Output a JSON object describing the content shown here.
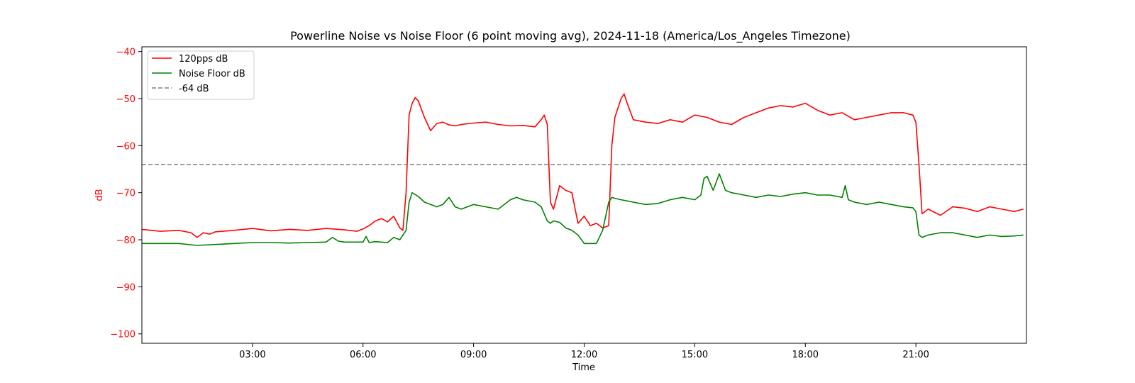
{
  "chart_data": {
    "type": "line",
    "title": "Powerline Noise vs Noise Floor (6 point moving avg), 2024-11-18 (America/Los_Angeles Timezone)",
    "xlabel": "Time",
    "ylabel": "dB",
    "xlim": [
      "00:00",
      "24:00"
    ],
    "ylim": [
      -102,
      -39
    ],
    "x_ticks": [
      "03:00",
      "06:00",
      "09:00",
      "12:00",
      "15:00",
      "18:00",
      "21:00"
    ],
    "y_ticks": [
      -40,
      -50,
      -60,
      -70,
      -80,
      -90,
      -100
    ],
    "legend_position": "top-left",
    "grid": false,
    "colors": {
      "axis_label": "#ff0000",
      "frame": "#000000"
    },
    "series": [
      {
        "name": "120pps dB",
        "color": "#ff0000",
        "style": "solid",
        "x": [
          "00:00",
          "00:30",
          "01:00",
          "01:20",
          "01:30",
          "01:40",
          "01:50",
          "02:00",
          "02:30",
          "03:00",
          "03:30",
          "04:00",
          "04:30",
          "05:00",
          "05:30",
          "05:50",
          "06:00",
          "06:10",
          "06:20",
          "06:30",
          "06:40",
          "06:50",
          "07:00",
          "07:05",
          "07:10",
          "07:15",
          "07:20",
          "07:25",
          "07:30",
          "07:40",
          "07:50",
          "08:00",
          "08:10",
          "08:20",
          "08:30",
          "08:40",
          "09:00",
          "09:20",
          "09:40",
          "10:00",
          "10:20",
          "10:40",
          "10:50",
          "10:55",
          "11:00",
          "11:05",
          "11:10",
          "11:20",
          "11:30",
          "11:40",
          "11:50",
          "12:00",
          "12:10",
          "12:20",
          "12:30",
          "12:40",
          "12:45",
          "12:50",
          "13:00",
          "13:05",
          "13:10",
          "13:20",
          "13:40",
          "14:00",
          "14:20",
          "14:40",
          "15:00",
          "15:20",
          "15:40",
          "16:00",
          "16:20",
          "16:40",
          "17:00",
          "17:20",
          "17:40",
          "18:00",
          "18:20",
          "18:40",
          "19:00",
          "19:20",
          "19:40",
          "20:00",
          "20:20",
          "20:40",
          "20:55",
          "21:00",
          "21:05",
          "21:10",
          "21:20",
          "21:40",
          "22:00",
          "22:20",
          "22:40",
          "23:00",
          "23:20",
          "23:40",
          "23:55"
        ],
        "y": [
          -77.8,
          -78.2,
          -78.0,
          -78.5,
          -79.5,
          -78.5,
          -78.8,
          -78.3,
          -78.0,
          -77.6,
          -78.1,
          -77.8,
          -78.0,
          -77.6,
          -77.9,
          -78.2,
          -77.7,
          -77.0,
          -76.0,
          -75.5,
          -76.2,
          -75.0,
          -77.5,
          -78.0,
          -70.0,
          -53.5,
          -51.0,
          -49.8,
          -50.5,
          -54.0,
          -56.8,
          -55.3,
          -55.0,
          -55.6,
          -55.8,
          -55.5,
          -55.2,
          -55.0,
          -55.5,
          -55.8,
          -55.7,
          -56.0,
          -54.5,
          -53.5,
          -55.5,
          -72.0,
          -73.5,
          -68.5,
          -69.5,
          -70.0,
          -76.5,
          -75.0,
          -77.0,
          -76.5,
          -77.5,
          -77.0,
          -60.0,
          -54.0,
          -50.0,
          -49.0,
          -51.0,
          -54.5,
          -55.0,
          -55.3,
          -54.5,
          -55.0,
          -53.5,
          -54.0,
          -55.0,
          -55.5,
          -54.0,
          -53.0,
          -52.0,
          -51.5,
          -51.8,
          -51.0,
          -52.5,
          -53.5,
          -53.0,
          -54.5,
          -54.0,
          -53.5,
          -53.0,
          -53.0,
          -53.5,
          -55.0,
          -64.0,
          -74.5,
          -73.5,
          -74.8,
          -73.0,
          -73.3,
          -74.0,
          -73.0,
          -73.5,
          -74.0,
          -73.5
        ]
      },
      {
        "name": "Noise Floor dB",
        "color": "#008000",
        "style": "solid",
        "x": [
          "00:00",
          "00:30",
          "01:00",
          "01:30",
          "02:00",
          "02:30",
          "03:00",
          "03:30",
          "04:00",
          "04:30",
          "05:00",
          "05:10",
          "05:20",
          "05:30",
          "06:00",
          "06:05",
          "06:10",
          "06:20",
          "06:40",
          "06:50",
          "07:00",
          "07:05",
          "07:10",
          "07:15",
          "07:20",
          "07:30",
          "07:40",
          "07:50",
          "08:00",
          "08:10",
          "08:20",
          "08:30",
          "08:40",
          "09:00",
          "09:20",
          "09:40",
          "10:00",
          "10:10",
          "10:20",
          "10:40",
          "10:50",
          "11:00",
          "11:05",
          "11:10",
          "11:20",
          "11:30",
          "11:40",
          "11:50",
          "12:00",
          "12:10",
          "12:20",
          "12:30",
          "12:40",
          "12:45",
          "12:50",
          "13:00",
          "13:20",
          "13:40",
          "14:00",
          "14:20",
          "14:40",
          "15:00",
          "15:10",
          "15:15",
          "15:20",
          "15:30",
          "15:40",
          "15:50",
          "16:00",
          "16:20",
          "16:40",
          "17:00",
          "17:20",
          "17:40",
          "18:00",
          "18:20",
          "18:40",
          "19:00",
          "19:05",
          "19:10",
          "19:20",
          "19:40",
          "20:00",
          "20:20",
          "20:40",
          "20:55",
          "21:00",
          "21:05",
          "21:10",
          "21:20",
          "21:40",
          "22:00",
          "22:20",
          "22:40",
          "23:00",
          "23:20",
          "23:40",
          "23:55"
        ],
        "y": [
          -80.8,
          -80.8,
          -80.8,
          -81.2,
          -81.0,
          -80.8,
          -80.6,
          -80.6,
          -80.7,
          -80.6,
          -80.5,
          -79.5,
          -80.3,
          -80.5,
          -80.5,
          -79.3,
          -80.6,
          -80.4,
          -80.6,
          -79.5,
          -80.0,
          -79.0,
          -78.0,
          -72.0,
          -70.0,
          -70.8,
          -72.0,
          -72.5,
          -73.0,
          -72.5,
          -71.0,
          -73.0,
          -73.5,
          -72.5,
          -73.0,
          -73.5,
          -71.5,
          -71.0,
          -71.5,
          -72.0,
          -73.0,
          -76.0,
          -76.5,
          -76.0,
          -76.3,
          -77.5,
          -78.0,
          -79.0,
          -80.8,
          -80.8,
          -80.8,
          -78.0,
          -72.0,
          -71.0,
          -71.2,
          -71.5,
          -72.0,
          -72.5,
          -72.3,
          -71.5,
          -71.0,
          -71.5,
          -70.5,
          -67.0,
          -66.5,
          -69.5,
          -66.0,
          -69.5,
          -70.0,
          -70.5,
          -71.0,
          -70.5,
          -70.8,
          -70.3,
          -70.0,
          -70.5,
          -70.5,
          -71.0,
          -68.5,
          -71.5,
          -72.0,
          -72.5,
          -72.0,
          -72.5,
          -73.0,
          -73.2,
          -74.0,
          -79.0,
          -79.5,
          -79.0,
          -78.5,
          -78.5,
          -79.0,
          -79.5,
          -79.0,
          -79.3,
          -79.2,
          -79.0
        ]
      },
      {
        "name": "-64 dB",
        "color": "#808080",
        "style": "dashed",
        "x": [
          "00:00",
          "24:00"
        ],
        "y": [
          -64,
          -64
        ]
      }
    ]
  }
}
